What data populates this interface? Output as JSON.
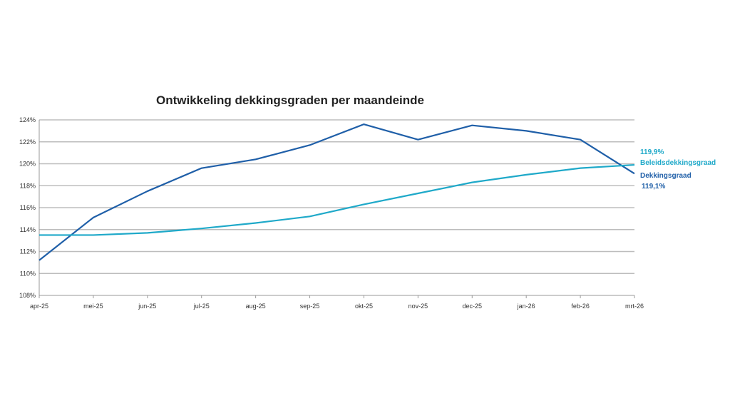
{
  "chart_data": {
    "type": "line",
    "title": "Ontwikkeling dekkingsgraden per maandeinde",
    "xlabel": "",
    "ylabel": "",
    "categories": [
      "apr-25",
      "mei-25",
      "jun-25",
      "jul-25",
      "aug-25",
      "sep-25",
      "okt-25",
      "nov-25",
      "dec-25",
      "jan-26",
      "feb-26",
      "mrt-26"
    ],
    "ylim": [
      108,
      124
    ],
    "yticks": [
      "108%",
      "110%",
      "112%",
      "114%",
      "116%",
      "118%",
      "120%",
      "122%",
      "124%"
    ],
    "grid": true,
    "legend": "inline-right",
    "series": [
      {
        "name": "Dekkingsgraad",
        "color": "#1f5fa8",
        "end_label": "119,1%",
        "values": [
          111.2,
          115.1,
          117.5,
          119.6,
          120.4,
          121.7,
          123.6,
          122.2,
          123.5,
          123.0,
          122.2,
          119.1
        ]
      },
      {
        "name": "Beleidsdekkingsgraad",
        "color": "#1fa9c9",
        "end_label": "119,9%",
        "values": [
          113.5,
          113.5,
          113.7,
          114.1,
          114.6,
          115.2,
          116.3,
          117.3,
          118.3,
          119.0,
          119.6,
          119.9
        ]
      }
    ]
  }
}
